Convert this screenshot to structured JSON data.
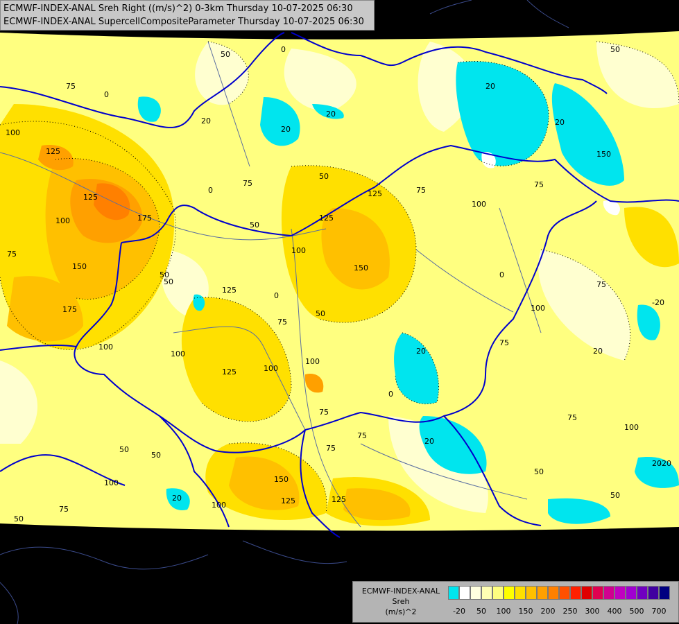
{
  "header": {
    "line1": "ECMWF-INDEX-ANAL Sreh Right ((m/s)^2) 0-3km Thursday 10-07-2025 06:30",
    "line2": "ECMWF-INDEX-ANAL SupercellCompositeParameter Thursday 10-07-2025 06:30"
  },
  "legend": {
    "model": "ECMWF-INDEX-ANAL",
    "variable": "Sreh",
    "unit": "(m/s)^2",
    "colors": [
      "#00e5ee",
      "#ffffff",
      "#ffffe0",
      "#ffffb4",
      "#ffff80",
      "#ffff00",
      "#ffe000",
      "#ffc000",
      "#ffa000",
      "#ff8000",
      "#ff5000",
      "#ff2000",
      "#e00000",
      "#e00050",
      "#d00090",
      "#c000c0",
      "#a000d0",
      "#7000c0",
      "#4000a0",
      "#000080"
    ],
    "ticks": [
      "-20",
      "50",
      "100",
      "150",
      "200",
      "250",
      "300",
      "400",
      "500",
      "700"
    ]
  },
  "contour_labels": [
    "0",
    "0",
    "0",
    "0",
    "0",
    "0",
    "20",
    "20",
    "20",
    "20",
    "20",
    "20",
    "20",
    "20",
    "20",
    "20",
    "50",
    "50",
    "50",
    "50",
    "50",
    "50",
    "50",
    "50",
    "50",
    "50",
    "50",
    "50",
    "75",
    "75",
    "75",
    "75",
    "75",
    "75",
    "75",
    "75",
    "75",
    "75",
    "75",
    "75",
    "75",
    "100",
    "100",
    "100",
    "100",
    "100",
    "100",
    "100",
    "100",
    "100",
    "100",
    "100",
    "100",
    "125",
    "125",
    "125",
    "125",
    "125",
    "125",
    "125",
    "125",
    "150",
    "150",
    "150",
    "150",
    "175",
    "175",
    "-20",
    "-20"
  ],
  "colors": {
    "background": "#000000",
    "base_field": "#ffff80",
    "border": "#0000cc",
    "river": "#5a6ea0"
  }
}
